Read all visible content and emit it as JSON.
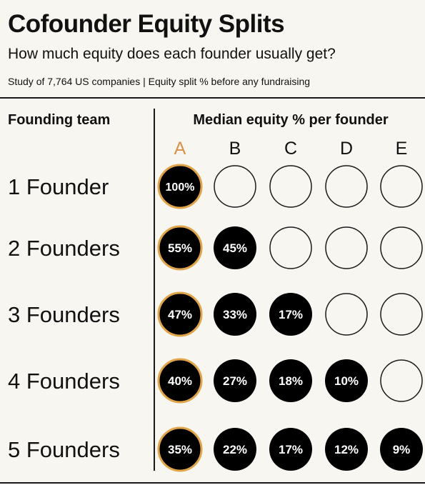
{
  "header": {
    "title": "Cofounder Equity Splits",
    "subtitle": "How much equity does each founder usually get?",
    "source": "Study of 7,764 US companies | Equity split % before any fundraising"
  },
  "chart_data": {
    "type": "table",
    "row_header": "Founding team",
    "column_header": "Median equity % per founder",
    "columns": [
      "A",
      "B",
      "C",
      "D",
      "E"
    ],
    "rows": [
      {
        "label": "1 Founder",
        "values": [
          "100%"
        ]
      },
      {
        "label": "2 Founders",
        "values": [
          "55%",
          "45%"
        ]
      },
      {
        "label": "3 Founders",
        "values": [
          "47%",
          "33%",
          "17%"
        ]
      },
      {
        "label": "4 Founders",
        "values": [
          "40%",
          "27%",
          "18%",
          "10%"
        ]
      },
      {
        "label": "5 Founders",
        "values": [
          "35%",
          "22%",
          "17%",
          "12%",
          "9%"
        ]
      }
    ],
    "colors": {
      "filled": "#000000",
      "highlight_ring": "#e0a54a",
      "highlight_column_label": "#d9924a",
      "empty_stroke": "#1a1a1a",
      "background": "#f8f6f0"
    }
  }
}
